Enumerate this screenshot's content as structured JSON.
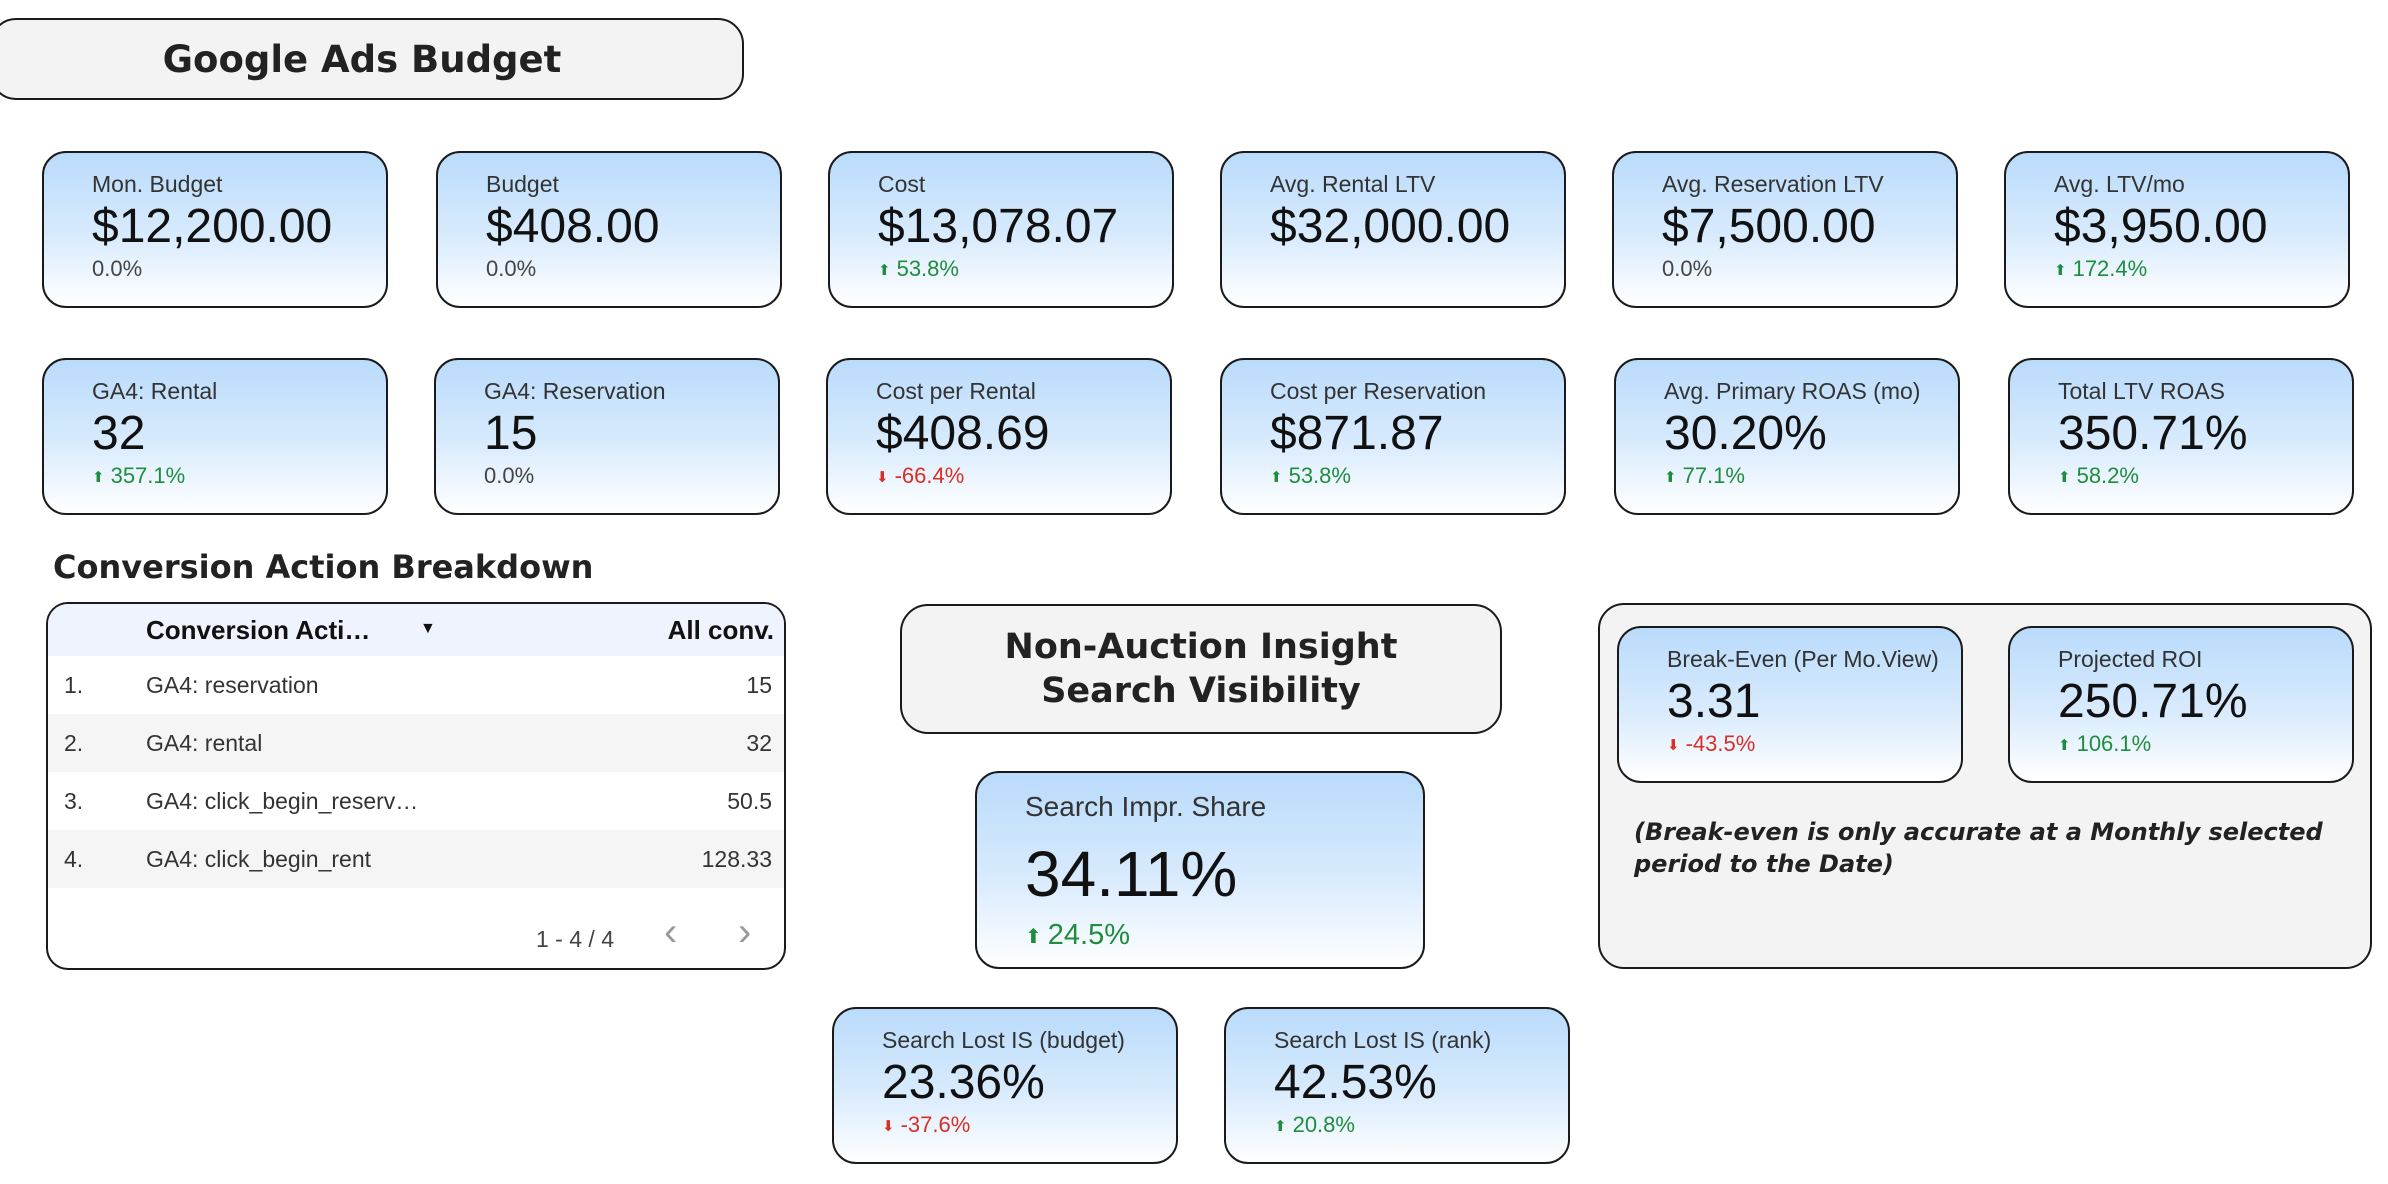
{
  "header": {
    "title": "Google Ads Budget"
  },
  "kpi_row1": [
    {
      "label": "Mon. Budget",
      "value": "$12,200.00",
      "change": "0.0%",
      "trend": "neutral"
    },
    {
      "label": "Budget",
      "value": "$408.00",
      "change": "0.0%",
      "trend": "neutral"
    },
    {
      "label": "Cost",
      "value": "$13,078.07",
      "change": "53.8%",
      "trend": "up"
    },
    {
      "label": "Avg. Rental LTV",
      "value": "$32,000.00",
      "change": "",
      "trend": "none"
    },
    {
      "label": "Avg. Reservation LTV",
      "value": "$7,500.00",
      "change": "0.0%",
      "trend": "neutral"
    },
    {
      "label": "Avg. LTV/mo",
      "value": "$3,950.00",
      "change": "172.4%",
      "trend": "up"
    }
  ],
  "kpi_row2": [
    {
      "label": "GA4: Rental",
      "value": "32",
      "change": "357.1%",
      "trend": "up"
    },
    {
      "label": "GA4: Reservation",
      "value": "15",
      "change": "0.0%",
      "trend": "neutral"
    },
    {
      "label": "Cost per Rental",
      "value": "$408.69",
      "change": "-66.4%",
      "trend": "down"
    },
    {
      "label": "Cost per Reservation",
      "value": "$871.87",
      "change": "53.8%",
      "trend": "up"
    },
    {
      "label": "Avg. Primary ROAS (mo)",
      "value": "30.20%",
      "change": "77.1%",
      "trend": "up"
    },
    {
      "label": "Total LTV ROAS",
      "value": "350.71%",
      "change": "58.2%",
      "trend": "up"
    }
  ],
  "conversion": {
    "title": "Conversion Action Breakdown",
    "columns": [
      "Conversion Acti…",
      "All conv."
    ],
    "rows": [
      {
        "idx": "1.",
        "name": "GA4: reservation",
        "value": "15"
      },
      {
        "idx": "2.",
        "name": "GA4: rental",
        "value": "32"
      },
      {
        "idx": "3.",
        "name": "GA4: click_begin_reserv…",
        "value": "50.5"
      },
      {
        "idx": "4.",
        "name": "GA4: click_begin_rent",
        "value": "128.33"
      }
    ],
    "pagination": "1 - 4 / 4"
  },
  "non_auction": {
    "title": "Non-Auction Insight Search Visibility",
    "impr_share": {
      "label": "Search Impr. Share",
      "value": "34.11%",
      "change": "24.5%",
      "trend": "up"
    },
    "lost_budget": {
      "label": "Search Lost IS (budget)",
      "value": "23.36%",
      "change": "-37.6%",
      "trend": "down"
    },
    "lost_rank": {
      "label": "Search Lost IS (rank)",
      "value": "42.53%",
      "change": "20.8%",
      "trend": "up"
    }
  },
  "roi_panel": {
    "break_even": {
      "label": "Break-Even (Per Mo.View)",
      "value": "3.31",
      "change": "-43.5%",
      "trend": "down"
    },
    "projected_roi": {
      "label": "Projected ROI",
      "value": "250.71%",
      "change": "106.1%",
      "trend": "up"
    },
    "note": "(Break-even is only accurate at a Monthly selected period to the Date)"
  },
  "colors": {
    "up": "#1e8e3e",
    "down": "#d93025",
    "card_top": "#b9dbfb"
  }
}
